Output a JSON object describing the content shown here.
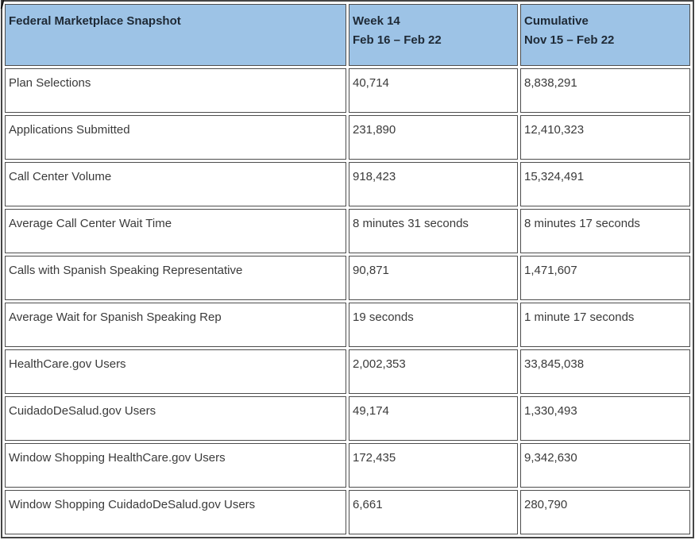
{
  "colors": {
    "header_bg": "#9DC3E6",
    "header_text": "#1E2935",
    "body_text": "#3A3A3A",
    "cell_border": "#4D4D4D",
    "outer_border": "#454545"
  },
  "table": {
    "header": {
      "title": "Federal Marketplace Snapshot",
      "week_line1": "Week 14",
      "week_line2": "Feb 16 – Feb 22",
      "cumulative_line1": "Cumulative",
      "cumulative_line2": "Nov 15 – Feb 22"
    },
    "rows": [
      {
        "label": "Plan Selections",
        "week": "40,714",
        "cumulative": "8,838,291"
      },
      {
        "label": "Applications Submitted",
        "week": "231,890",
        "cumulative": "12,410,323"
      },
      {
        "label": "Call Center Volume",
        "week": "918,423",
        "cumulative": "15,324,491"
      },
      {
        "label": "Average Call Center Wait Time",
        "week": "8 minutes 31 seconds",
        "cumulative": "8 minutes 17 seconds"
      },
      {
        "label": "Calls with Spanish Speaking Representative",
        "week": "90,871",
        "cumulative": "1,471,607"
      },
      {
        "label": "Average Wait for Spanish Speaking Rep",
        "week": "19 seconds",
        "cumulative": "1 minute 17 seconds"
      },
      {
        "label": "HealthCare.gov Users",
        "week": "2,002,353",
        "cumulative": "33,845,038"
      },
      {
        "label": "CuidadoDeSalud.gov Users",
        "week": "49,174",
        "cumulative": "1,330,493"
      },
      {
        "label": "Window Shopping HealthCare.gov Users",
        "week": "172,435",
        "cumulative": "9,342,630"
      },
      {
        "label": "Window Shopping CuidadoDeSalud.gov Users",
        "week": "6,661",
        "cumulative": "280,790"
      }
    ]
  }
}
